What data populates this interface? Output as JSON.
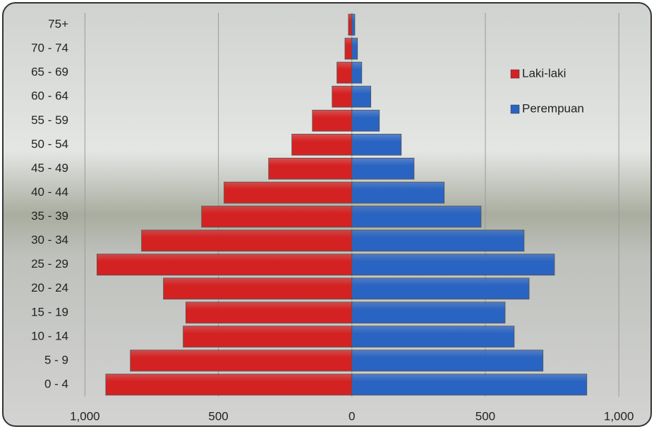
{
  "chart_data": {
    "type": "pyramid",
    "categories": [
      "0 - 4",
      "5 - 9",
      "10 - 14",
      "15 - 19",
      "20 - 24",
      "25 - 29",
      "30 - 34",
      "35 - 39",
      "40 - 44",
      "45 - 49",
      "50 - 54",
      "55 - 59",
      "60 - 64",
      "65 - 69",
      "70 - 74",
      "75+"
    ],
    "series": [
      {
        "name": "Laki-laki",
        "color": "#d42222",
        "values": [
          -922,
          -830,
          -632,
          -622,
          -706,
          -955,
          -788,
          -563,
          -479,
          -312,
          -225,
          -148,
          -74,
          -56,
          -26,
          -13
        ]
      },
      {
        "name": "Perempuan",
        "color": "#2a64c2",
        "values": [
          880,
          716,
          608,
          574,
          664,
          759,
          645,
          484,
          346,
          233,
          185,
          103,
          71,
          37,
          21,
          11
        ]
      }
    ],
    "xlim": [
      -1260,
      1100
    ],
    "xticks": [
      {
        "value": -1000,
        "label": "1,000"
      },
      {
        "value": -500,
        "label": "500"
      },
      0,
      500,
      {
        "value": 1000,
        "label": "1,000"
      }
    ],
    "grid": true
  }
}
